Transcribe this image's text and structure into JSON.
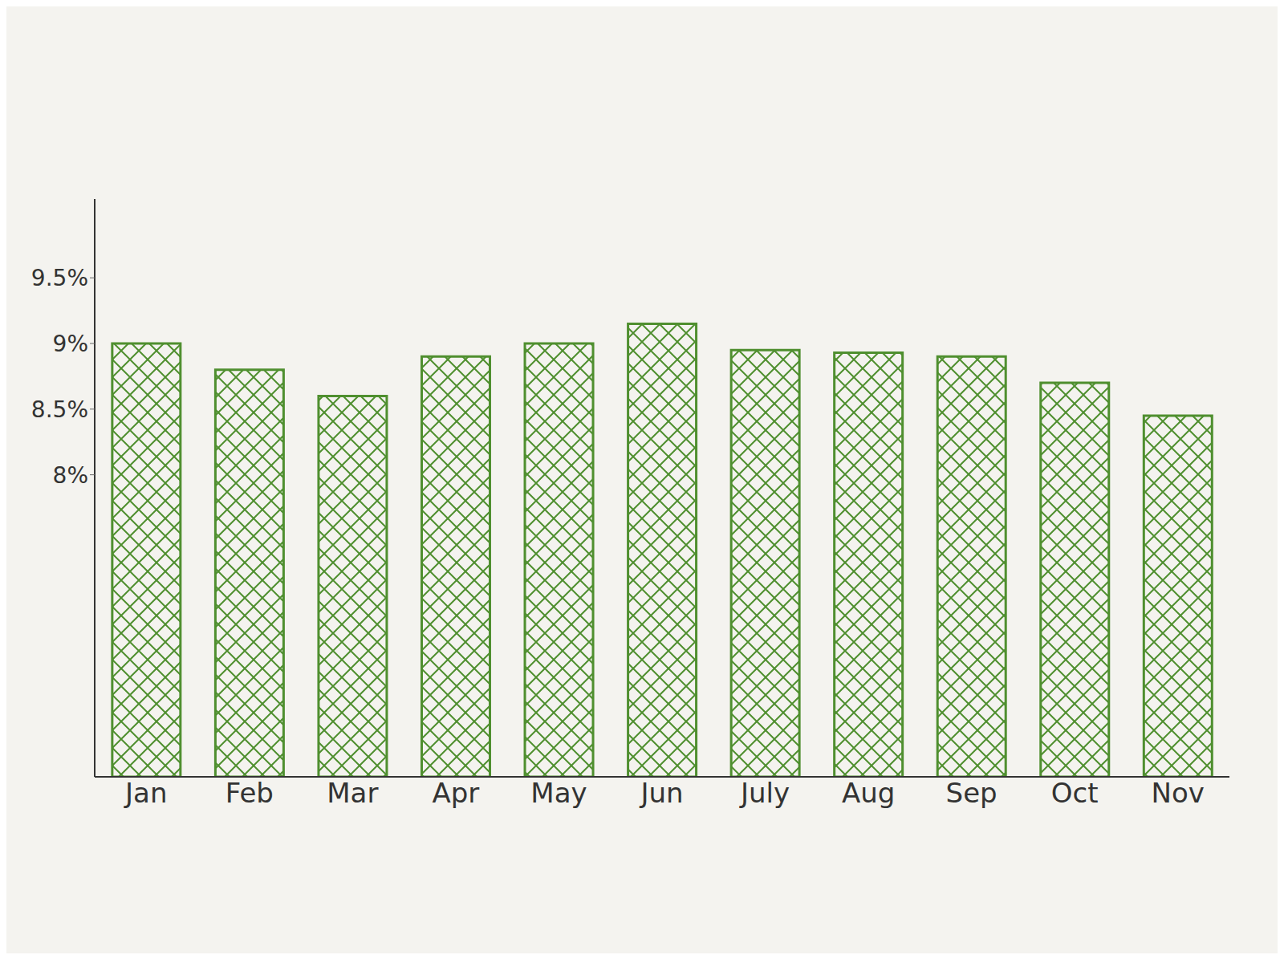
{
  "chart_data": {
    "type": "bar",
    "categories": [
      "Jan",
      "Feb",
      "Mar",
      "Apr",
      "May",
      "Jun",
      "July",
      "Aug",
      "Sep",
      "Oct",
      "Nov"
    ],
    "values": [
      9.0,
      8.8,
      8.6,
      8.9,
      9.0,
      9.15,
      8.95,
      8.93,
      8.9,
      8.7,
      8.45
    ],
    "color": "#4f8f2f",
    "ylim": [
      5.7,
      10.1
    ],
    "yticks": [
      {
        "value": 8,
        "label": "8%"
      },
      {
        "value": 8.5,
        "label": "8.5%"
      },
      {
        "value": 9,
        "label": "9%"
      },
      {
        "value": 9.5,
        "label": "9.5%"
      }
    ],
    "grid": false
  }
}
